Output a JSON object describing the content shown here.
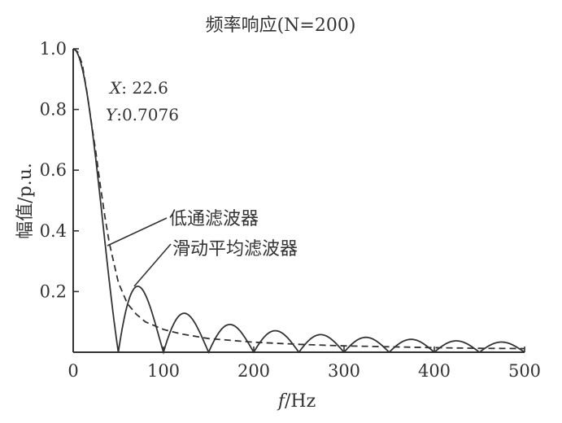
{
  "chart_data": {
    "type": "line",
    "title": "频率响应(N=200)",
    "xlabel_italic": "f",
    "xlabel_rest": "/Hz",
    "ylabel": "幅值/p.u.",
    "xlim": [
      0,
      500
    ],
    "ylim": [
      0,
      1.0
    ],
    "xticks": [
      "0",
      "100",
      "200",
      "300",
      "400",
      "500"
    ],
    "yticks": [
      "0.2",
      "0.4",
      "0.6",
      "0.8",
      "1.0"
    ],
    "grid": false,
    "annotation": {
      "x_label": "X",
      "x_value": ": 22.6",
      "y_label": "Y",
      "y_value": ":0.7076"
    },
    "series": [
      {
        "name": "低通滤波器",
        "style": "dashed",
        "color": "#333333",
        "x": [
          0,
          5,
          10,
          15,
          20,
          22.6,
          25,
          30,
          35,
          40,
          50,
          60,
          70,
          80,
          100,
          120,
          150,
          200,
          250,
          300,
          350,
          400,
          450,
          500
        ],
        "y": [
          1.0,
          0.99,
          0.95,
          0.86,
          0.76,
          0.7076,
          0.66,
          0.55,
          0.45,
          0.36,
          0.23,
          0.16,
          0.125,
          0.1,
          0.075,
          0.06,
          0.045,
          0.033,
          0.026,
          0.021,
          0.018,
          0.015,
          0.013,
          0.012
        ]
      },
      {
        "name": "滑动平均滤波器",
        "style": "solid",
        "color": "#333333",
        "formula": "|sinc(f/50)|",
        "zero_spacing_hz": 50
      }
    ]
  }
}
